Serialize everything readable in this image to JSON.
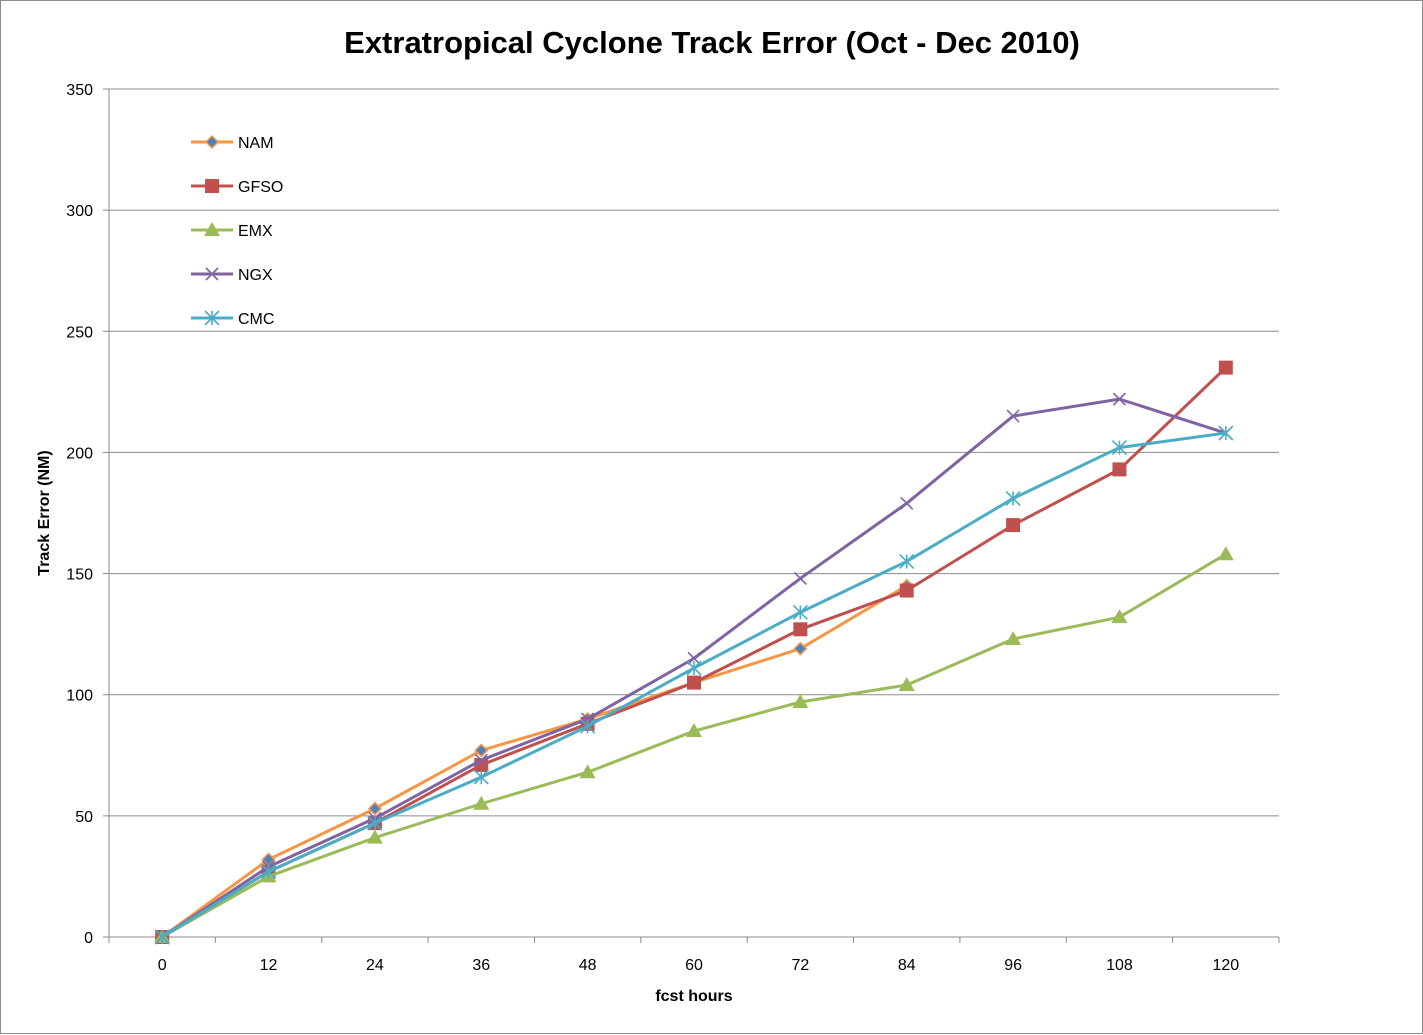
{
  "chart_data": {
    "type": "line",
    "title": "Extratropical Cyclone Track Error (Oct - Dec 2010)",
    "xlabel": "fcst hours",
    "ylabel": "Track Error  (NM)",
    "categories": [
      "0",
      "12",
      "24",
      "36",
      "48",
      "60",
      "72",
      "84",
      "96",
      "108",
      "120"
    ],
    "y_ticks": [
      "0",
      "50",
      "100",
      "150",
      "200",
      "250",
      "300",
      "350"
    ],
    "ylim": [
      0,
      350
    ],
    "grid": "horizontal",
    "legend_position": "top-left",
    "series": [
      {
        "name": "NAM",
        "color": "#f79646",
        "marker_color": "#4f81bd",
        "marker": "diamond",
        "values": [
          0,
          32,
          53,
          77,
          90,
          105,
          119,
          145,
          null,
          null,
          null
        ]
      },
      {
        "name": "GFSO",
        "color": "#c0504d",
        "marker_color": "#c0504d",
        "marker": "square",
        "values": [
          0,
          27,
          47,
          71,
          88,
          105,
          127,
          143,
          170,
          193,
          235
        ]
      },
      {
        "name": "EMX",
        "color": "#9bbb59",
        "marker_color": "#9bbb59",
        "marker": "triangle",
        "values": [
          0,
          25,
          41,
          55,
          68,
          85,
          97,
          104,
          123,
          132,
          158
        ]
      },
      {
        "name": "NGX",
        "color": "#8064a2",
        "marker_color": "#8064a2",
        "marker": "x",
        "values": [
          0,
          29,
          49,
          73,
          90,
          115,
          148,
          179,
          215,
          222,
          208
        ]
      },
      {
        "name": "CMC",
        "color": "#4bacc6",
        "marker_color": "#4bacc6",
        "marker": "star",
        "values": [
          0,
          27,
          47,
          66,
          87,
          111,
          134,
          155,
          181,
          202,
          208
        ]
      }
    ]
  }
}
